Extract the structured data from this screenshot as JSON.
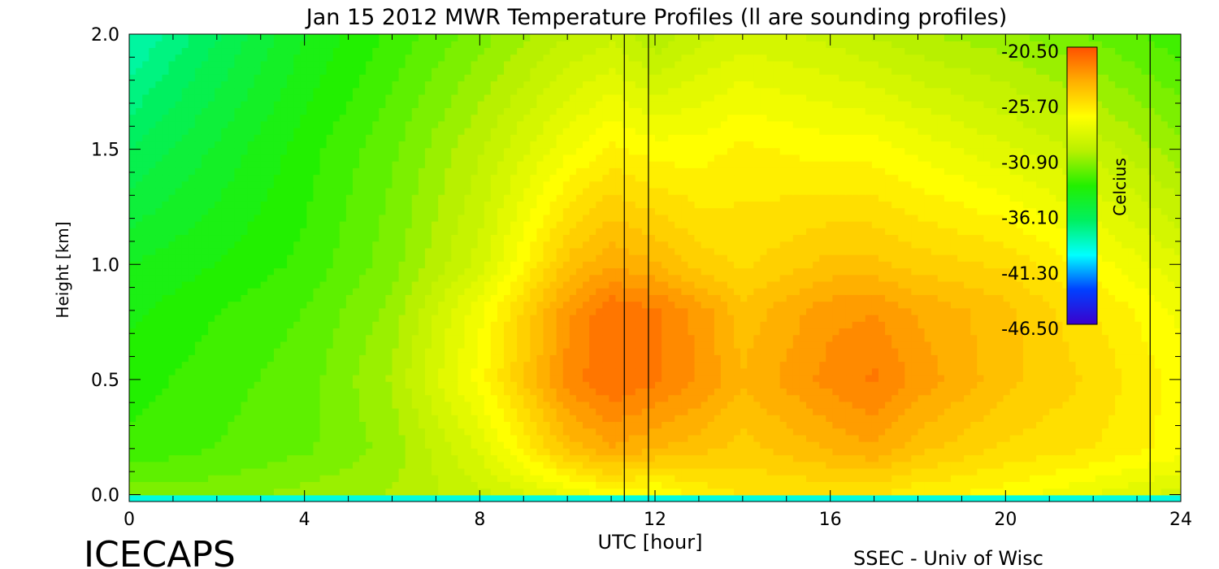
{
  "chart_data": {
    "type": "heatmap",
    "title": "Jan 15 2012 MWR Temperature Profiles (ll are sounding profiles)",
    "xlabel": "UTC [hour]",
    "ylabel": "Height [km]",
    "xlim": [
      0,
      24
    ],
    "ylim": [
      -0.03,
      2.0
    ],
    "xticks": [
      "0",
      "4",
      "8",
      "12",
      "16",
      "20",
      "24"
    ],
    "xtick_values": [
      0,
      4,
      8,
      12,
      16,
      20,
      24
    ],
    "yticks": [
      "0.0",
      "0.5",
      "1.0",
      "1.5",
      "2.0"
    ],
    "ytick_values": [
      0.0,
      0.5,
      1.0,
      1.5,
      2.0
    ],
    "sounding_profiles_utc": [
      11.3,
      11.85,
      23.3
    ],
    "colorbar": {
      "label": "Celcius",
      "range": [
        -46.5,
        -20.5
      ],
      "tick_labels": [
        "-20.50",
        "-25.70",
        "-30.90",
        "-36.10",
        "-41.30",
        "-46.50"
      ],
      "tick_values": [
        -20.5,
        -25.7,
        -30.9,
        -36.1,
        -41.3,
        -46.5
      ],
      "colors": [
        "#3b00cc",
        "#0040ff",
        "#00ffff",
        "#00f060",
        "#22f000",
        "#b8f000",
        "#ffff00",
        "#ffb000",
        "#ff5000"
      ]
    },
    "temperature_grid_celsius": {
      "x": [
        0,
        2,
        4,
        6,
        8,
        10,
        11,
        12,
        13,
        14,
        16,
        17,
        18,
        20,
        22,
        24
      ],
      "y": [
        0.0,
        0.2,
        0.5,
        0.8,
        1.0,
        1.5,
        2.0
      ],
      "values": [
        [
          -31.5,
          -31.5,
          -31.0,
          -30.5,
          -29.5,
          -28.0,
          -27.0,
          -27.5,
          -26.5,
          -26.0,
          -26.0,
          -26.0,
          -26.5,
          -27.0,
          -28.0,
          -29.0
        ],
        [
          -33.0,
          -32.5,
          -32.0,
          -31.0,
          -28.5,
          -24.5,
          -23.5,
          -24.0,
          -24.5,
          -25.0,
          -24.0,
          -23.5,
          -24.5,
          -25.5,
          -26.0,
          -27.0
        ],
        [
          -33.5,
          -32.8,
          -32.2,
          -30.5,
          -27.0,
          -22.5,
          -21.5,
          -22.0,
          -22.8,
          -24.0,
          -22.5,
          -22.0,
          -23.0,
          -24.5,
          -25.5,
          -27.0
        ],
        [
          -34.0,
          -33.2,
          -32.5,
          -31.0,
          -27.5,
          -23.0,
          -21.5,
          -22.0,
          -23.0,
          -24.5,
          -23.0,
          -22.8,
          -23.5,
          -24.5,
          -26.0,
          -27.5
        ],
        [
          -34.5,
          -33.8,
          -33.0,
          -31.5,
          -29.0,
          -24.5,
          -23.5,
          -24.0,
          -25.0,
          -25.5,
          -24.5,
          -24.5,
          -25.0,
          -25.5,
          -27.0,
          -28.5
        ],
        [
          -36.5,
          -35.0,
          -33.5,
          -32.0,
          -30.0,
          -27.5,
          -26.5,
          -27.0,
          -27.0,
          -26.5,
          -27.0,
          -27.0,
          -27.5,
          -28.5,
          -29.5,
          -31.0
        ],
        [
          -38.5,
          -36.5,
          -34.5,
          -33.0,
          -31.5,
          -30.0,
          -29.5,
          -30.5,
          -29.5,
          -29.0,
          -29.5,
          -30.0,
          -30.5,
          -31.0,
          -32.0,
          -33.0
        ]
      ]
    }
  },
  "footer": {
    "left_logo": "ICECAPS",
    "right_credit": "SSEC - Univ of Wisc"
  }
}
